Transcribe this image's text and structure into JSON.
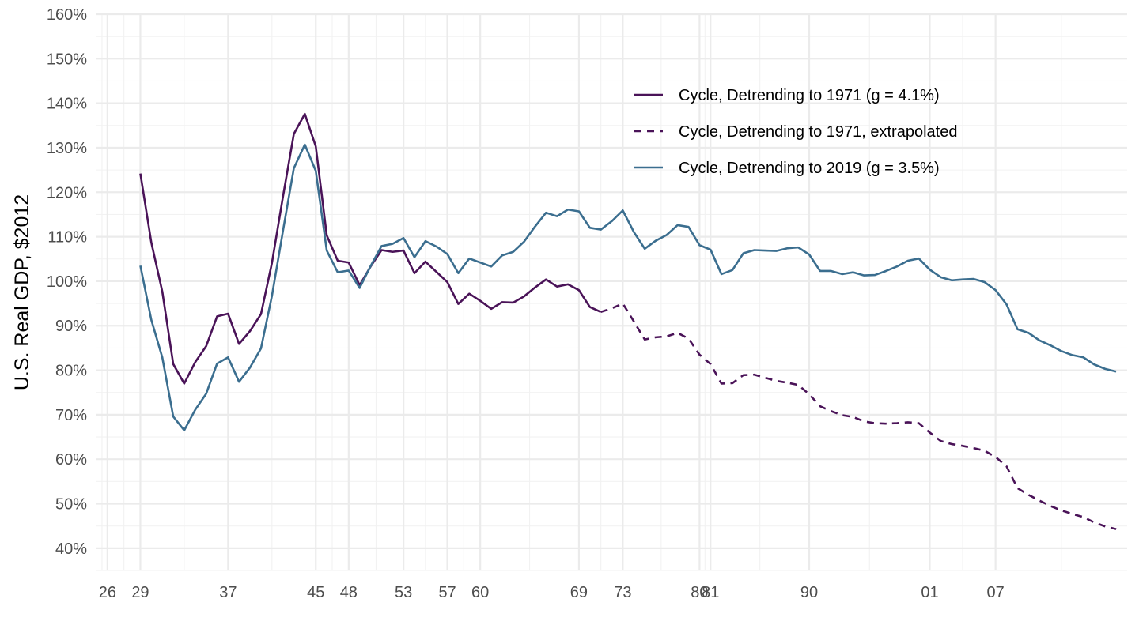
{
  "chart_data": {
    "type": "line",
    "title": "",
    "xlabel": "",
    "ylabel": "U.S. Real GDP, $2012",
    "ylim": [
      40,
      160
    ],
    "xlim": [
      1925,
      2019
    ],
    "y_ticks": [
      40,
      50,
      60,
      70,
      80,
      90,
      100,
      110,
      120,
      130,
      140,
      150,
      160
    ],
    "y_tick_labels": [
      "40%",
      "50%",
      "60%",
      "70%",
      "80%",
      "90%",
      "100%",
      "110%",
      "120%",
      "130%",
      "140%",
      "150%",
      "160%"
    ],
    "x_ticks": [
      1926,
      1929,
      1937,
      1945,
      1948,
      1953,
      1957,
      1960,
      1969,
      1973,
      1980,
      1981,
      1990,
      2001,
      2007
    ],
    "x_tick_labels": [
      "26",
      "29",
      "37",
      "45",
      "48",
      "53",
      "57",
      "60",
      "69",
      "73",
      "80",
      "81",
      "90",
      "01",
      "07"
    ],
    "grid": true,
    "legend": {
      "position": "top-right"
    },
    "colors": {
      "purple": "#4a1358",
      "blue": "#3b6e8f",
      "grid_major": "#ebebeb",
      "grid_minor": "#f2f2f2"
    },
    "series": [
      {
        "name": "Cycle, Detrending to 1971 (g = 4.1%)",
        "color": "#4a1358",
        "dash": "solid",
        "x": [
          1929,
          1930,
          1931,
          1932,
          1933,
          1934,
          1935,
          1936,
          1937,
          1938,
          1939,
          1940,
          1941,
          1942,
          1943,
          1944,
          1945,
          1946,
          1947,
          1948,
          1949,
          1950,
          1951,
          1952,
          1953,
          1954,
          1955,
          1956,
          1957,
          1958,
          1959,
          1960,
          1961,
          1962,
          1963,
          1964,
          1965,
          1966,
          1967,
          1968,
          1969,
          1970,
          1971
        ],
        "y": [
          124.2,
          108.7,
          97.7,
          81.4,
          77.0,
          81.8,
          85.4,
          92.1,
          92.7,
          85.9,
          88.8,
          92.6,
          104.1,
          118.9,
          133.1,
          137.6,
          130.3,
          110.3,
          104.6,
          104.2,
          99.1,
          103.3,
          107.0,
          106.6,
          106.9,
          101.8,
          104.4,
          102.1,
          99.8,
          94.9,
          97.2,
          95.6,
          93.8,
          95.3,
          95.2,
          96.6,
          98.6,
          100.4,
          98.8,
          99.3,
          98.0,
          94.2,
          93.1
        ]
      },
      {
        "name": "Cycle, Detrending to 1971, extrapolated",
        "color": "#4a1358",
        "dash": "dashed",
        "x": [
          1971,
          1972,
          1973,
          1974,
          1975,
          1976,
          1977,
          1978,
          1979,
          1980,
          1981,
          1982,
          1983,
          1984,
          1985,
          1986,
          1987,
          1988,
          1989,
          1990,
          1991,
          1992,
          1993,
          1994,
          1995,
          1996,
          1997,
          1998,
          1999,
          2000,
          2001,
          2002,
          2003,
          2004,
          2005,
          2006,
          2007,
          2008,
          2009,
          2010,
          2011,
          2012,
          2013,
          2014,
          2015,
          2016,
          2017,
          2018
        ],
        "y": [
          93.1,
          93.9,
          95.0,
          91.0,
          86.9,
          87.4,
          87.6,
          88.4,
          87.1,
          83.5,
          81.4,
          77.0,
          77.1,
          78.9,
          79.0,
          78.3,
          77.6,
          77.2,
          76.7,
          74.6,
          71.9,
          70.8,
          69.9,
          69.5,
          68.5,
          68.1,
          68.0,
          68.1,
          68.3,
          68.1,
          66.0,
          64.1,
          63.4,
          63.0,
          62.5,
          61.9,
          60.5,
          58.4,
          53.5,
          52.0,
          50.7,
          49.5,
          48.5,
          47.7,
          47.0,
          45.8,
          44.9,
          44.3
        ]
      },
      {
        "name": "Cycle, Detrending to 2019 (g = 3.5%)",
        "color": "#3b6e8f",
        "dash": "solid",
        "x": [
          1929,
          1930,
          1931,
          1932,
          1933,
          1934,
          1935,
          1936,
          1937,
          1938,
          1939,
          1940,
          1941,
          1942,
          1943,
          1944,
          1945,
          1946,
          1947,
          1948,
          1949,
          1950,
          1951,
          1952,
          1953,
          1954,
          1955,
          1956,
          1957,
          1958,
          1959,
          1960,
          1961,
          1962,
          1963,
          1964,
          1965,
          1966,
          1967,
          1968,
          1969,
          1970,
          1971,
          1972,
          1973,
          1974,
          1975,
          1976,
          1977,
          1978,
          1979,
          1980,
          1981,
          1982,
          1983,
          1984,
          1985,
          1986,
          1987,
          1988,
          1989,
          1990,
          1991,
          1992,
          1993,
          1994,
          1995,
          1996,
          1997,
          1998,
          1999,
          2000,
          2001,
          2002,
          2003,
          2004,
          2005,
          2006,
          2007,
          2008,
          2009,
          2010,
          2011,
          2012,
          2013,
          2014,
          2015,
          2016,
          2017,
          2018
        ],
        "y": [
          103.5,
          91.3,
          82.9,
          69.6,
          66.5,
          71.1,
          74.7,
          81.5,
          82.9,
          77.4,
          80.6,
          84.9,
          96.7,
          111.2,
          125.4,
          130.7,
          124.8,
          106.9,
          102.0,
          102.4,
          98.5,
          103.4,
          107.9,
          108.4,
          109.7,
          105.4,
          109.0,
          107.8,
          106.1,
          101.8,
          105.1,
          104.2,
          103.3,
          105.8,
          106.6,
          108.9,
          112.3,
          115.4,
          114.6,
          116.1,
          115.7,
          112.0,
          111.6,
          113.5,
          115.9,
          111.1,
          107.3,
          109.1,
          110.4,
          112.6,
          112.2,
          108.1,
          107.1,
          101.6,
          102.5,
          106.3,
          107.0,
          106.9,
          106.8,
          107.4,
          107.6,
          106.0,
          102.3,
          102.3,
          101.6,
          102.0,
          101.3,
          101.4,
          102.3,
          103.3,
          104.6,
          105.1,
          102.6,
          100.9,
          100.2,
          100.4,
          100.5,
          99.8,
          98.0,
          94.8,
          89.2,
          88.4,
          86.7,
          85.6,
          84.3,
          83.4,
          82.9,
          81.3,
          80.3,
          79.7
        ]
      }
    ]
  }
}
